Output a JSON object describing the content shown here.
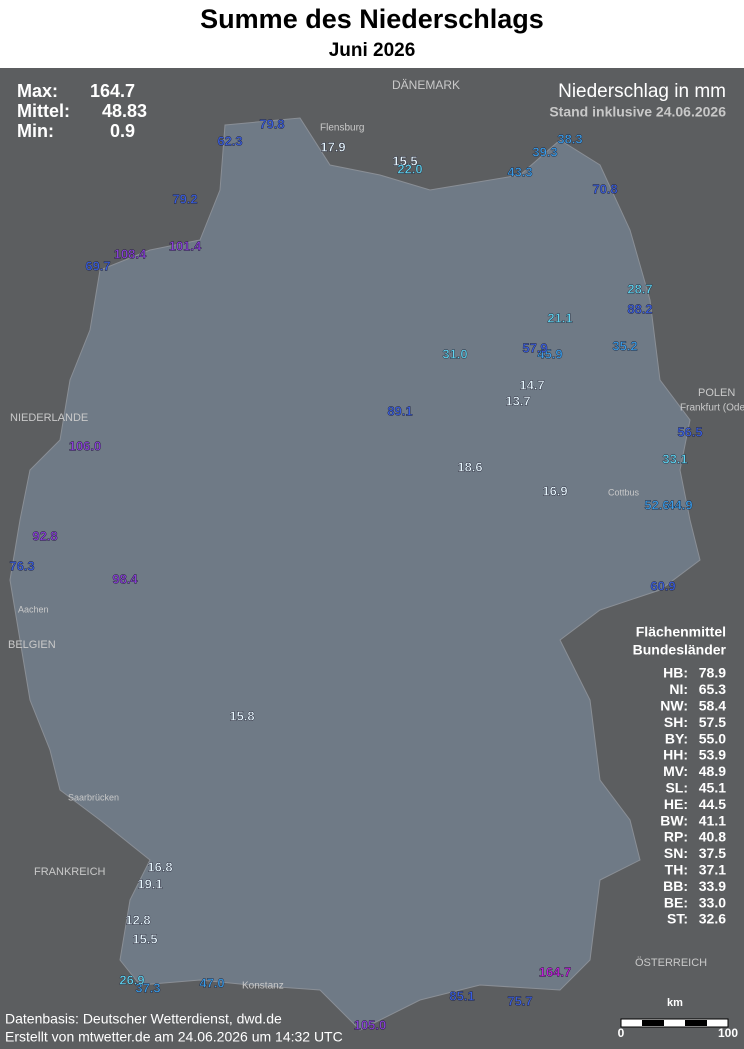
{
  "header": {
    "title": "Summe des Niederschlags",
    "subtitle": "Juni 2026"
  },
  "stats": [
    {
      "label": "Max:",
      "value": "164.7"
    },
    {
      "label": "Mittel:",
      "value": "48.83"
    },
    {
      "label": "Min:",
      "value": "0.9"
    }
  ],
  "legend": {
    "title": "Niederschlag in mm",
    "note": "Stand inklusive 24.06.2026"
  },
  "state_means": {
    "title": "Flächenmittel",
    "subtitle": "Bundesländer",
    "rows": [
      {
        "state": "HB:",
        "value": "78.9"
      },
      {
        "state": "NI:",
        "value": "65.3"
      },
      {
        "state": "NW:",
        "value": "58.4"
      },
      {
        "state": "SH:",
        "value": "57.5"
      },
      {
        "state": "BY:",
        "value": "55.0"
      },
      {
        "state": "HH:",
        "value": "53.9"
      },
      {
        "state": "MV:",
        "value": "48.9"
      },
      {
        "state": "SL:",
        "value": "45.1"
      },
      {
        "state": "HE:",
        "value": "44.5"
      },
      {
        "state": "BW:",
        "value": "41.1"
      },
      {
        "state": "RP:",
        "value": "40.8"
      },
      {
        "state": "SN:",
        "value": "37.5"
      },
      {
        "state": "TH:",
        "value": "37.1"
      },
      {
        "state": "BB:",
        "value": "33.9"
      },
      {
        "state": "BE:",
        "value": "33.0"
      },
      {
        "state": "ST:",
        "value": "32.6"
      }
    ]
  },
  "places": [
    "DÄNEMARK",
    "NIEDERLANDE",
    "POLEN",
    "Frankfurt (Oder)",
    "BELGIEN",
    "FRANKREICH",
    "ÖSTERREICH",
    "Flensburg",
    "Konstanz",
    "Aachen",
    "Saarbrücken",
    "Cottbus"
  ],
  "stations": [
    "79.8",
    "62.3",
    "17.9",
    "15.5",
    "22.0",
    "79.2",
    "38.3",
    "39.3",
    "70.8",
    "108.4",
    "101.4",
    "69.7",
    "106.0",
    "92.8",
    "76.3",
    "14.7",
    "13.7",
    "16.9",
    "18.6",
    "52.6",
    "60.9",
    "15.8",
    "16.8",
    "15.5",
    "37.3",
    "47.0",
    "105.0",
    "85.1",
    "75.7",
    "26.9",
    "12.8",
    "19.1",
    "28.7",
    "88.2",
    "35.2",
    "31.0",
    "45.9",
    "56.5",
    "33.1",
    "44.9",
    "164.7",
    "98.4",
    "89.1",
    "21.1",
    "43.3",
    "57.9"
  ],
  "footer": {
    "source": "Datenbasis: Deutscher Wetterdienst, dwd.de",
    "created": "Erstellt von mtwetter.de am 24.06.2026 um 14:32 UTC"
  },
  "scale": {
    "unit": "km",
    "start": "0",
    "end": "100"
  }
}
